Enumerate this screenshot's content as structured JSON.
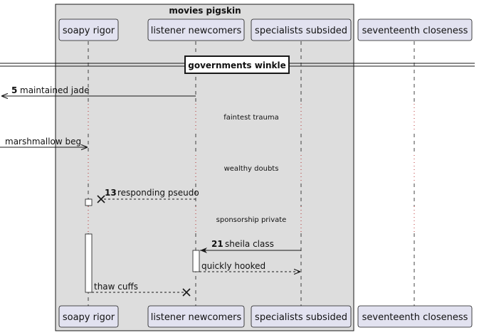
{
  "group": {
    "title": "movies pigskin"
  },
  "participants": [
    {
      "name": "soapy rigor"
    },
    {
      "name": "listener newcomers"
    },
    {
      "name": "specialists subsided"
    },
    {
      "name": "seventeenth closeness"
    }
  ],
  "divider": {
    "label": "governments winkle"
  },
  "messages": [
    {
      "number": "5",
      "text": "maintained jade"
    },
    {
      "number": "",
      "text": "marshmallow beg"
    },
    {
      "number": "13",
      "text": "responding pseudo"
    },
    {
      "number": "21",
      "text": "sheila class"
    },
    {
      "number": "",
      "text": "quickly hooked"
    },
    {
      "number": "",
      "text": "thaw cuffs"
    }
  ],
  "delays": [
    {
      "text": "faintest trauma"
    },
    {
      "text": "wealthy doubts"
    },
    {
      "text": "sponsorship private"
    }
  ],
  "colors": {
    "group_fill": "#dddddd",
    "box_fill": "#e2e2f0",
    "box_stroke": "#181818",
    "line": "#181818"
  }
}
